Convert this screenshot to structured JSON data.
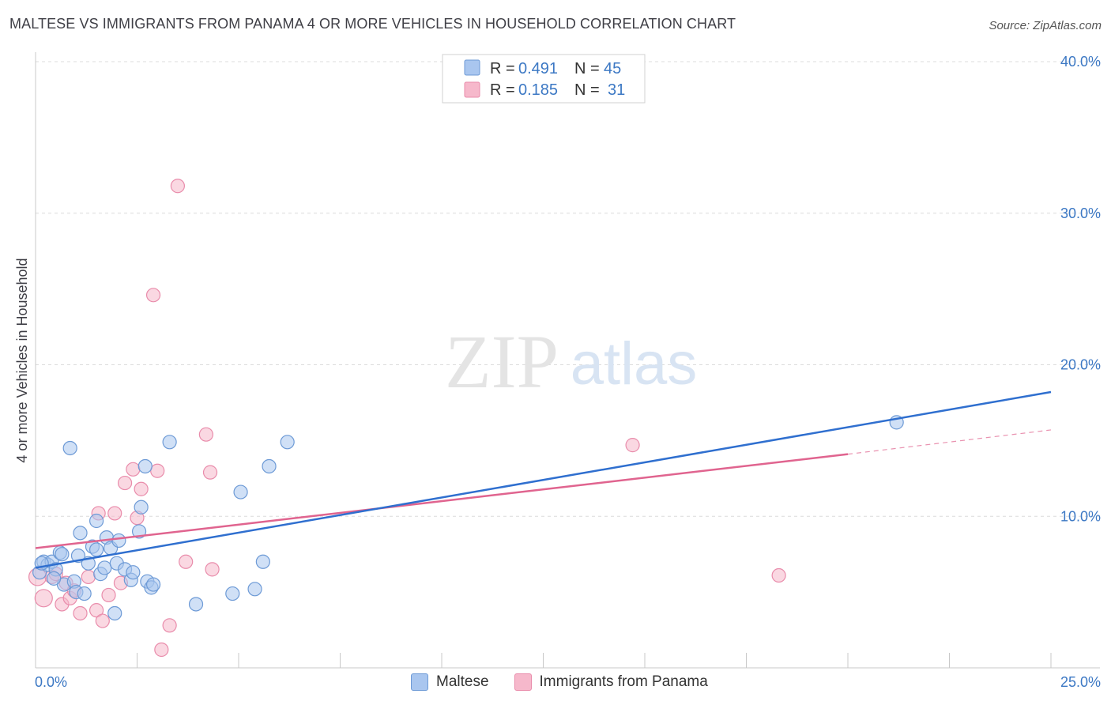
{
  "header": {
    "title": "MALTESE VS IMMIGRANTS FROM PANAMA 4 OR MORE VEHICLES IN HOUSEHOLD CORRELATION CHART",
    "source": "Source: ZipAtlas.com"
  },
  "watermark": {
    "zip": "ZIP",
    "atlas": "atlas"
  },
  "colors": {
    "blue_fill": "#a9c6ef",
    "blue_stroke": "#6d9ad6",
    "blue_line": "#2f6fcf",
    "pink_fill": "#f6b8cb",
    "pink_stroke": "#e98cab",
    "pink_line": "#e0648f",
    "tick_label": "#3c78c4",
    "grid": "#dcdcdc"
  },
  "legend": {
    "rows": [
      {
        "r_label": "R = ",
        "r_value": "0.491",
        "n_label": "N = ",
        "n_value": "45"
      },
      {
        "r_label": "R = ",
        "r_value": "0.185",
        "n_label": "N = ",
        "n_value": "31"
      }
    ],
    "bottom": [
      "Maltese",
      "Immigrants from Panama"
    ]
  },
  "chart_data": {
    "type": "scatter",
    "title": "MALTESE VS IMMIGRANTS FROM PANAMA 4 OR MORE VEHICLES IN HOUSEHOLD CORRELATION CHART",
    "ylabel": "4 or more Vehicles in Household",
    "xlabel": "",
    "xlim": [
      0,
      25
    ],
    "ylim": [
      0,
      40
    ],
    "x_tick_labels": [
      "0.0%",
      "25.0%"
    ],
    "y_ticks": [
      10,
      20,
      30,
      40
    ],
    "y_tick_labels": [
      "10.0%",
      "20.0%",
      "30.0%",
      "40.0%"
    ],
    "grid": true,
    "legend_position": "top-center",
    "series": [
      {
        "name": "Maltese",
        "r": 0.491,
        "n": 45,
        "trend": {
          "x": [
            0,
            25
          ],
          "y": [
            6.6,
            18.2
          ]
        },
        "points": [
          [
            0.1,
            6.3
          ],
          [
            0.2,
            7.0
          ],
          [
            0.3,
            6.8
          ],
          [
            0.4,
            7.0
          ],
          [
            0.5,
            6.5
          ],
          [
            0.6,
            7.6
          ],
          [
            0.7,
            5.5
          ],
          [
            0.85,
            14.5
          ],
          [
            0.95,
            5.7
          ],
          [
            1.0,
            5.0
          ],
          [
            1.1,
            8.9
          ],
          [
            1.2,
            4.9
          ],
          [
            1.3,
            6.9
          ],
          [
            1.4,
            8.0
          ],
          [
            1.5,
            7.8
          ],
          [
            1.5,
            9.7
          ],
          [
            1.6,
            6.2
          ],
          [
            1.7,
            6.6
          ],
          [
            1.75,
            8.6
          ],
          [
            1.85,
            7.9
          ],
          [
            1.95,
            3.6
          ],
          [
            2.0,
            6.9
          ],
          [
            2.05,
            8.4
          ],
          [
            2.2,
            6.5
          ],
          [
            2.35,
            5.8
          ],
          [
            2.4,
            6.3
          ],
          [
            2.55,
            9.0
          ],
          [
            2.6,
            10.6
          ],
          [
            2.7,
            13.3
          ],
          [
            2.75,
            5.7
          ],
          [
            2.85,
            5.3
          ],
          [
            2.9,
            5.5
          ],
          [
            3.3,
            14.9
          ],
          [
            3.95,
            4.2
          ],
          [
            4.85,
            4.9
          ],
          [
            5.05,
            11.6
          ],
          [
            5.4,
            5.2
          ],
          [
            5.6,
            7.0
          ],
          [
            5.75,
            13.3
          ],
          [
            6.2,
            14.9
          ],
          [
            21.2,
            16.2
          ],
          [
            0.15,
            6.9
          ],
          [
            0.45,
            5.9
          ],
          [
            1.05,
            7.4
          ],
          [
            0.65,
            7.5
          ]
        ]
      },
      {
        "name": "Immigrants from Panama",
        "r": 0.185,
        "n": 31,
        "trend": {
          "x": [
            0,
            20
          ],
          "y": [
            7.9,
            14.1
          ]
        },
        "trend_dashed": {
          "x": [
            20,
            25
          ],
          "y": [
            14.1,
            15.7
          ]
        },
        "points": [
          [
            0.05,
            6.0
          ],
          [
            0.2,
            4.6
          ],
          [
            0.4,
            6.0
          ],
          [
            0.5,
            6.2
          ],
          [
            0.65,
            4.2
          ],
          [
            0.75,
            5.6
          ],
          [
            0.85,
            4.6
          ],
          [
            0.95,
            5.1
          ],
          [
            1.1,
            3.6
          ],
          [
            1.3,
            6.0
          ],
          [
            1.5,
            3.8
          ],
          [
            1.55,
            10.2
          ],
          [
            1.65,
            3.1
          ],
          [
            1.8,
            4.8
          ],
          [
            1.95,
            10.2
          ],
          [
            2.1,
            5.6
          ],
          [
            2.2,
            12.2
          ],
          [
            2.4,
            13.1
          ],
          [
            2.5,
            9.9
          ],
          [
            2.6,
            11.8
          ],
          [
            2.9,
            24.6
          ],
          [
            3.0,
            13.0
          ],
          [
            3.1,
            1.2
          ],
          [
            3.3,
            2.8
          ],
          [
            3.5,
            31.8
          ],
          [
            3.7,
            7.0
          ],
          [
            4.2,
            15.4
          ],
          [
            4.3,
            12.9
          ],
          [
            4.35,
            6.5
          ],
          [
            14.7,
            14.7
          ],
          [
            18.3,
            6.1
          ]
        ]
      }
    ]
  }
}
